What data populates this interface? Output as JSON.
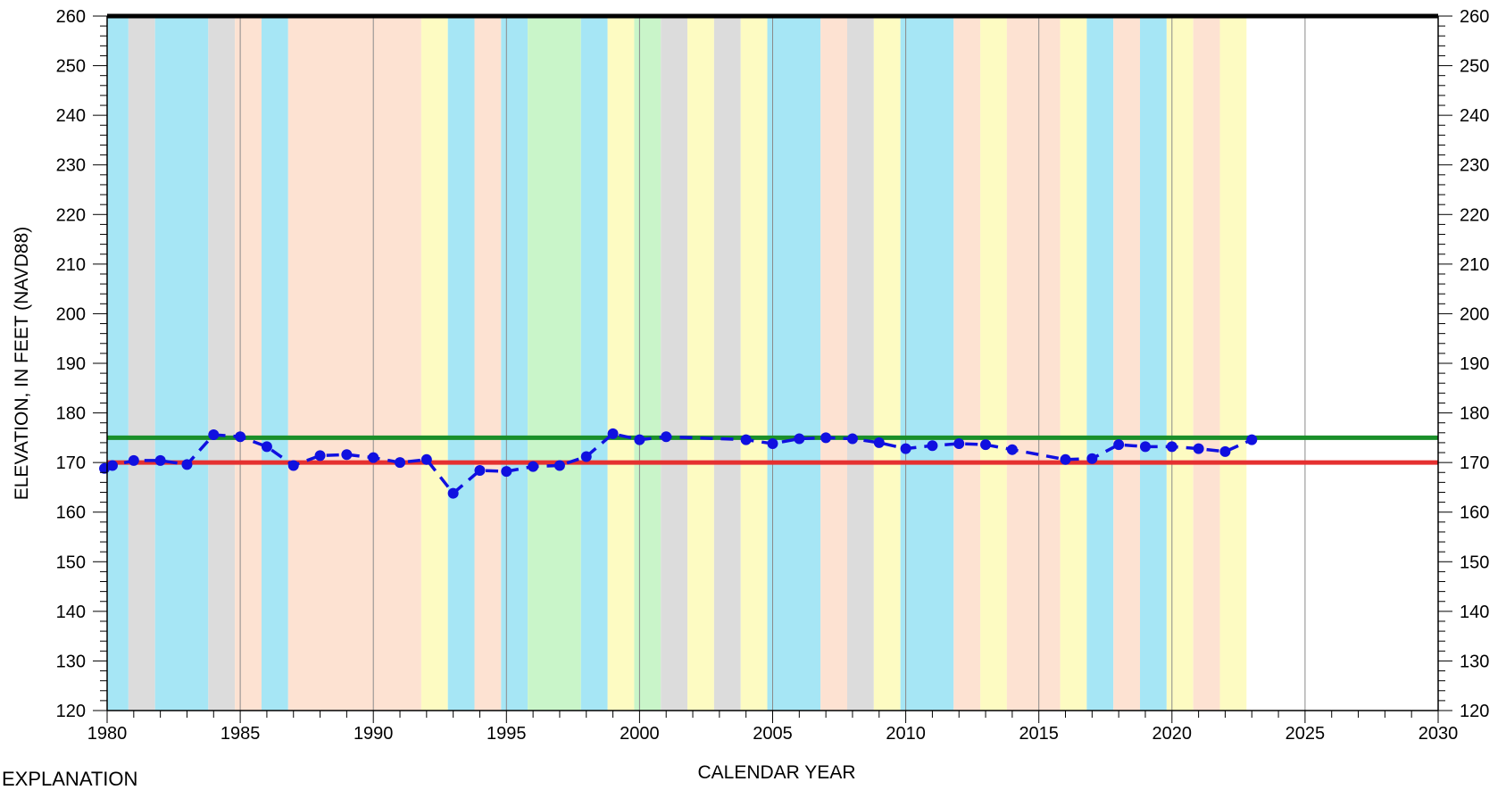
{
  "chart_data": {
    "type": "line",
    "xlabel": "CALENDAR YEAR",
    "ylabel": "ELEVATION, IN FEET (NAVD88)",
    "xlim": [
      1980,
      2030
    ],
    "ylim": [
      120,
      260
    ],
    "x_ticks": [
      1980,
      1985,
      1990,
      1995,
      2000,
      2005,
      2010,
      2015,
      2020,
      2025,
      2030
    ],
    "y_ticks": [
      120,
      130,
      140,
      150,
      160,
      170,
      180,
      190,
      200,
      210,
      220,
      230,
      240,
      250,
      260
    ],
    "grid": "vertical",
    "background_bands": [
      {
        "start": 1979.8,
        "end": 1980.8,
        "color": "#a6e6f5"
      },
      {
        "start": 1980.8,
        "end": 1981.8,
        "color": "#dcdcdc"
      },
      {
        "start": 1981.8,
        "end": 1983.8,
        "color": "#a6e6f5"
      },
      {
        "start": 1983.8,
        "end": 1984.8,
        "color": "#dcdcdc"
      },
      {
        "start": 1984.8,
        "end": 1985.8,
        "color": "#fde2d2"
      },
      {
        "start": 1985.8,
        "end": 1986.8,
        "color": "#a6e6f5"
      },
      {
        "start": 1986.8,
        "end": 1991.8,
        "color": "#fde2d2"
      },
      {
        "start": 1991.8,
        "end": 1992.8,
        "color": "#fdfbc2"
      },
      {
        "start": 1992.8,
        "end": 1993.8,
        "color": "#a6e6f5"
      },
      {
        "start": 1993.8,
        "end": 1994.8,
        "color": "#fde2d2"
      },
      {
        "start": 1994.8,
        "end": 1995.8,
        "color": "#a6e6f5"
      },
      {
        "start": 1995.8,
        "end": 1997.8,
        "color": "#c9f5c9"
      },
      {
        "start": 1997.8,
        "end": 1998.8,
        "color": "#a6e6f5"
      },
      {
        "start": 1998.8,
        "end": 1999.8,
        "color": "#fdfbc2"
      },
      {
        "start": 1999.8,
        "end": 2000.8,
        "color": "#c9f5c9"
      },
      {
        "start": 2000.8,
        "end": 2001.8,
        "color": "#dcdcdc"
      },
      {
        "start": 2001.8,
        "end": 2002.8,
        "color": "#fdfbc2"
      },
      {
        "start": 2002.8,
        "end": 2003.8,
        "color": "#dcdcdc"
      },
      {
        "start": 2003.8,
        "end": 2004.8,
        "color": "#fdfbc2"
      },
      {
        "start": 2004.8,
        "end": 2006.8,
        "color": "#a6e6f5"
      },
      {
        "start": 2006.8,
        "end": 2007.8,
        "color": "#fde2d2"
      },
      {
        "start": 2007.8,
        "end": 2008.8,
        "color": "#dcdcdc"
      },
      {
        "start": 2008.8,
        "end": 2009.8,
        "color": "#fdfbc2"
      },
      {
        "start": 2009.8,
        "end": 2011.8,
        "color": "#a6e6f5"
      },
      {
        "start": 2011.8,
        "end": 2012.8,
        "color": "#fde2d2"
      },
      {
        "start": 2012.8,
        "end": 2013.8,
        "color": "#fdfbc2"
      },
      {
        "start": 2013.8,
        "end": 2015.8,
        "color": "#fde2d2"
      },
      {
        "start": 2015.8,
        "end": 2016.8,
        "color": "#fdfbc2"
      },
      {
        "start": 2016.8,
        "end": 2017.8,
        "color": "#a6e6f5"
      },
      {
        "start": 2017.8,
        "end": 2018.8,
        "color": "#fde2d2"
      },
      {
        "start": 2018.8,
        "end": 2019.8,
        "color": "#a6e6f5"
      },
      {
        "start": 2019.8,
        "end": 2020.8,
        "color": "#fdfbc2"
      },
      {
        "start": 2020.8,
        "end": 2021.8,
        "color": "#fde2d2"
      },
      {
        "start": 2021.8,
        "end": 2022.8,
        "color": "#fdfbc2"
      }
    ],
    "reference_lines": [
      {
        "y": 175,
        "color": "#1a8f2a"
      },
      {
        "y": 170,
        "color": "#e53030"
      }
    ],
    "series": [
      {
        "color": "#1010e0",
        "style": "dashed",
        "marker": "circle",
        "x": [
          1979.9,
          1980.2,
          1981,
          1982,
          1983,
          1984,
          1985,
          1986,
          1987,
          1988,
          1989,
          1990,
          1991,
          1992,
          1993,
          1994,
          1995,
          1996,
          1997,
          1998,
          1999,
          2000,
          2001,
          2004,
          2005,
          2006,
          2007,
          2008,
          2009,
          2010,
          2011,
          2012,
          2013,
          2014,
          2016,
          2017,
          2018,
          2019,
          2020,
          2021,
          2022,
          2023
        ],
        "y": [
          168.8,
          169.4,
          170.4,
          170.4,
          169.6,
          175.6,
          175.2,
          173.2,
          169.4,
          171.4,
          171.6,
          171.0,
          170.0,
          170.6,
          163.8,
          168.4,
          168.2,
          169.2,
          169.4,
          171.2,
          175.8,
          174.6,
          175.2,
          174.6,
          173.8,
          174.8,
          175.0,
          174.8,
          174.0,
          172.8,
          173.4,
          173.8,
          173.6,
          172.6,
          170.6,
          170.8,
          173.6,
          173.2,
          173.2,
          172.8,
          172.2,
          174.6
        ]
      }
    ]
  },
  "legend_header": "EXPLANATION"
}
